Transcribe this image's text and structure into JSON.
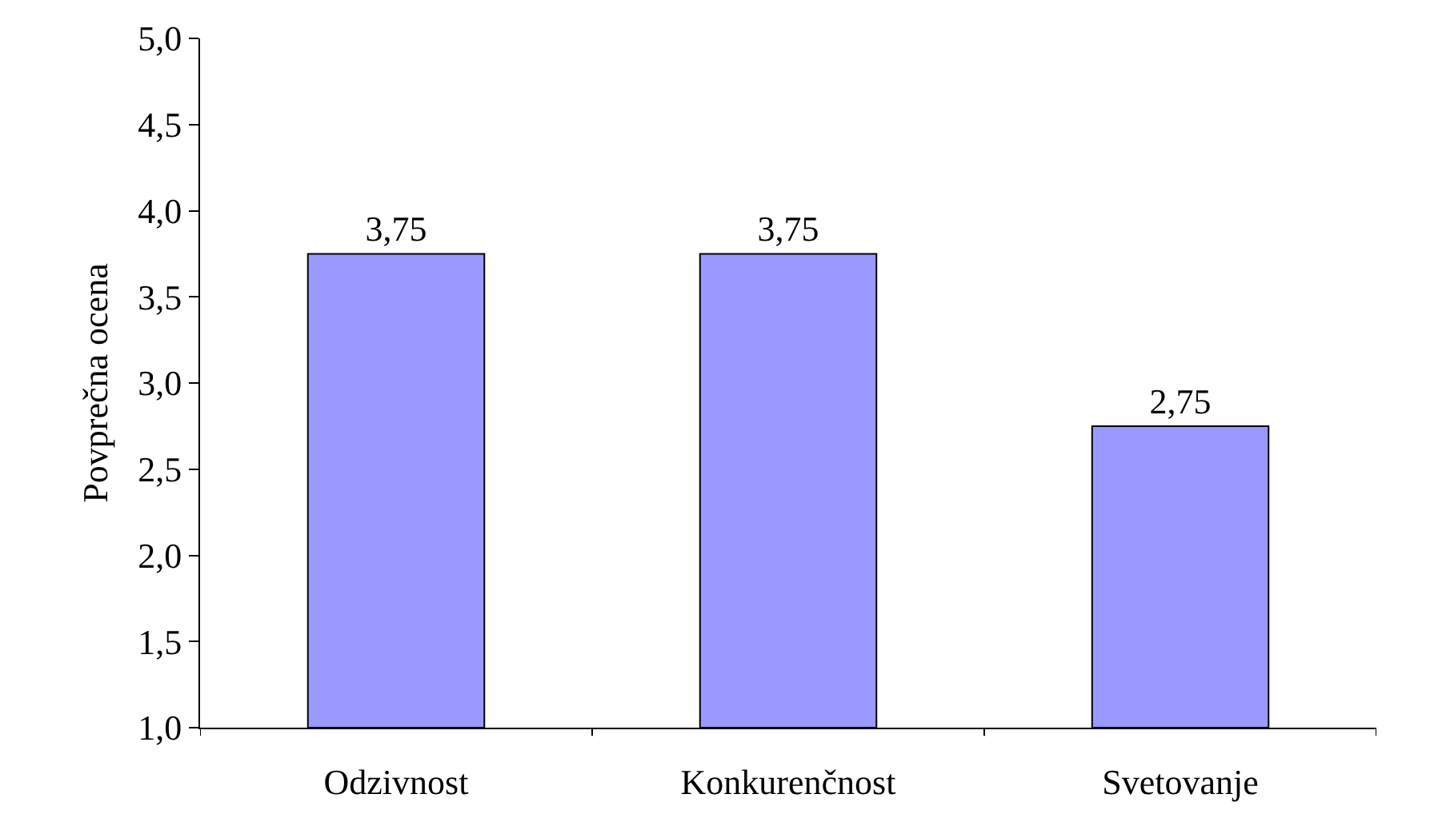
{
  "chart_data": {
    "type": "bar",
    "ylabel": "Povprečna ocena",
    "categories": [
      "Odzivnost",
      "Konkurenčnost",
      "Svetovanje"
    ],
    "values": [
      3.75,
      3.75,
      2.75
    ],
    "value_labels": [
      "3,75",
      "3,75",
      "2,75"
    ],
    "color": "#9999ff",
    "ylim": [
      1,
      5
    ],
    "yticks": [
      {
        "value": 1,
        "label": "1,0"
      },
      {
        "value": 1.5,
        "label": "1,5"
      },
      {
        "value": 2,
        "label": "2,0"
      },
      {
        "value": 2.5,
        "label": "2,5"
      },
      {
        "value": 3,
        "label": "3,0"
      },
      {
        "value": 3.5,
        "label": "3,5"
      },
      {
        "value": 4,
        "label": "4,0"
      },
      {
        "value": 4.5,
        "label": "4,5"
      },
      {
        "value": 5,
        "label": "5,0"
      }
    ],
    "grid": false
  }
}
